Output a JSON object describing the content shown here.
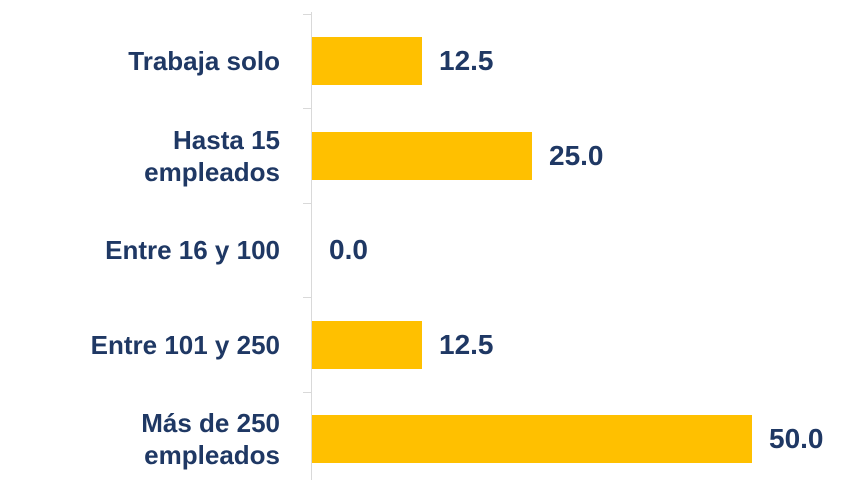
{
  "chart_data": {
    "type": "bar",
    "orientation": "horizontal",
    "categories": [
      "Trabaja solo",
      "Hasta 15\nempleados",
      "Entre 16 y 100",
      "Entre 101 y 250",
      "Más de 250\nempleados"
    ],
    "values": [
      12.5,
      25.0,
      0.0,
      12.5,
      50.0
    ],
    "value_labels": [
      "12.5",
      "25.0",
      "0.0",
      "12.5",
      "50.0"
    ],
    "color": "#FFC000"
  }
}
